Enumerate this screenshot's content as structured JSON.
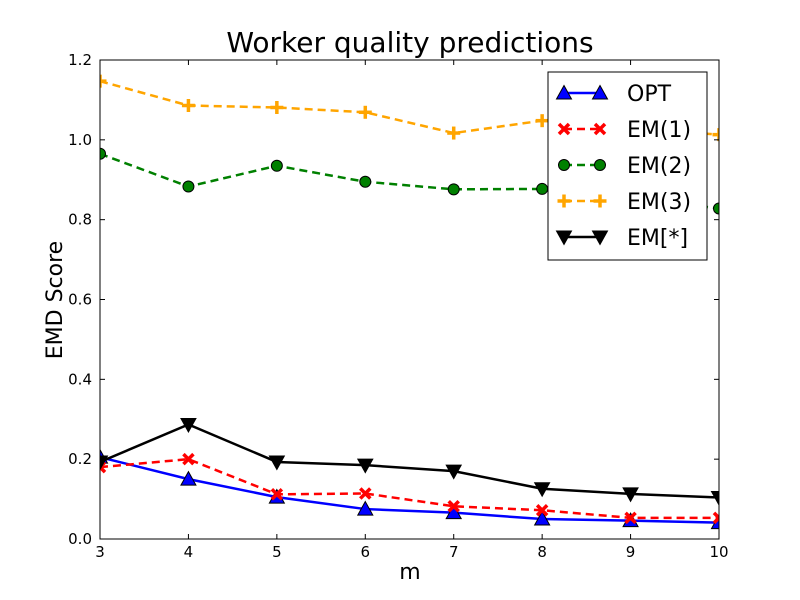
{
  "chart_data": {
    "type": "line",
    "title": "Worker quality predictions",
    "xlabel": "m",
    "ylabel": "EMD Score",
    "xlim": [
      3,
      10
    ],
    "ylim": [
      0.0,
      1.2
    ],
    "xticks": [
      3,
      4,
      5,
      6,
      7,
      8,
      9,
      10
    ],
    "yticks": [
      0.0,
      0.2,
      0.4,
      0.6,
      0.8,
      1.0,
      1.2
    ],
    "ytick_labels": [
      "0.0",
      "0.2",
      "0.4",
      "0.6",
      "0.8",
      "1.0",
      "1.2"
    ],
    "grid": false,
    "legend_position": "top-right",
    "x": [
      3,
      4,
      5,
      6,
      7,
      8,
      9,
      10
    ],
    "series": [
      {
        "name": "OPT",
        "color": "#0000ff",
        "linestyle": "solid",
        "marker": "triangle-up",
        "values": [
          0.205,
          0.15,
          0.105,
          0.075,
          0.066,
          0.05,
          0.046,
          0.041
        ]
      },
      {
        "name": "EM(1)",
        "color": "#ff0000",
        "linestyle": "dashed",
        "marker": "x",
        "values": [
          0.18,
          0.2,
          0.112,
          0.114,
          0.082,
          0.072,
          0.053,
          0.053
        ]
      },
      {
        "name": "EM(2)",
        "color": "#008000",
        "linestyle": "dashed",
        "marker": "circle",
        "values": [
          0.965,
          0.883,
          0.935,
          0.895,
          0.876,
          0.877,
          0.855,
          0.828
        ]
      },
      {
        "name": "EM(3)",
        "color": "#ffa500",
        "linestyle": "dashed",
        "marker": "plus",
        "values": [
          1.147,
          1.086,
          1.081,
          1.069,
          1.017,
          1.048,
          1.03,
          1.013
        ]
      },
      {
        "name": "EM[*]",
        "color": "#000000",
        "linestyle": "solid",
        "marker": "triangle-down",
        "values": [
          0.193,
          0.287,
          0.193,
          0.185,
          0.17,
          0.126,
          0.113,
          0.104
        ]
      }
    ]
  }
}
